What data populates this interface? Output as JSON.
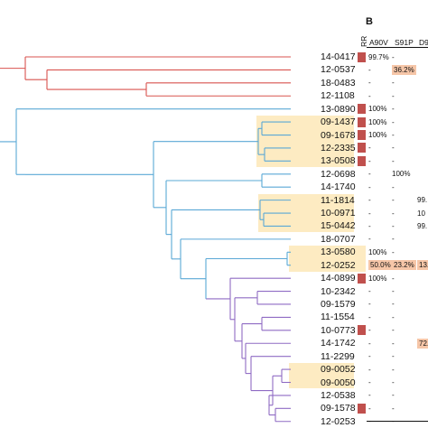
{
  "panel_label": "B",
  "header": {
    "rr": "RR",
    "columns": [
      "A90V",
      "S91P",
      "D9"
    ]
  },
  "colors": {
    "red_clade": "#d9534f",
    "blue_clade": "#5aa8d6",
    "purple_clade": "#8f6bc4",
    "highlight": "#fdebc2",
    "rr_marker": "#c0504d",
    "cell_highlight": "#f6c6a8"
  },
  "taxa": [
    {
      "id": "14-0417",
      "rr": true,
      "highlight": false,
      "cells": [
        "99.7%",
        "-",
        ""
      ]
    },
    {
      "id": "12-0537",
      "rr": false,
      "highlight": false,
      "cells": [
        "-",
        "36.2%",
        ""
      ]
    },
    {
      "id": "18-0483",
      "rr": false,
      "highlight": false,
      "cells": [
        "-",
        "-",
        ""
      ]
    },
    {
      "id": "12-1108",
      "rr": false,
      "highlight": false,
      "cells": [
        "-",
        "-",
        ""
      ]
    },
    {
      "id": "13-0890",
      "rr": true,
      "highlight": false,
      "cells": [
        "100%",
        "-",
        ""
      ]
    },
    {
      "id": "09-1437",
      "rr": true,
      "highlight": true,
      "cells": [
        "100%",
        "-",
        ""
      ]
    },
    {
      "id": "09-1678",
      "rr": true,
      "highlight": true,
      "cells": [
        "100%",
        "-",
        ""
      ]
    },
    {
      "id": "12-2335",
      "rr": true,
      "highlight": true,
      "cells": [
        "-",
        "-",
        ""
      ]
    },
    {
      "id": "13-0508",
      "rr": true,
      "highlight": true,
      "cells": [
        "-",
        "-",
        ""
      ]
    },
    {
      "id": "12-0698",
      "rr": false,
      "highlight": false,
      "cells": [
        "-",
        "100%",
        ""
      ]
    },
    {
      "id": "14-1740",
      "rr": false,
      "highlight": false,
      "cells": [
        "-",
        "-",
        ""
      ]
    },
    {
      "id": "11-1814",
      "rr": false,
      "highlight": true,
      "cells": [
        "-",
        "-",
        "99."
      ]
    },
    {
      "id": "10-0971",
      "rr": false,
      "highlight": true,
      "cells": [
        "-",
        "-",
        "10"
      ]
    },
    {
      "id": "15-0442",
      "rr": false,
      "highlight": true,
      "cells": [
        "-",
        "-",
        "99."
      ]
    },
    {
      "id": "18-0707",
      "rr": false,
      "highlight": false,
      "cells": [
        "-",
        "-",
        ""
      ]
    },
    {
      "id": "13-0580",
      "rr": false,
      "highlight": true,
      "cells": [
        "100%",
        "-",
        ""
      ]
    },
    {
      "id": "12-0252",
      "rr": false,
      "highlight": true,
      "cells": [
        "50.0%",
        "23.2%",
        "13."
      ]
    },
    {
      "id": "14-0899",
      "rr": true,
      "highlight": false,
      "cells": [
        "100%",
        "-",
        ""
      ]
    },
    {
      "id": "10-2342",
      "rr": false,
      "highlight": false,
      "cells": [
        "-",
        "-",
        ""
      ]
    },
    {
      "id": "09-1579",
      "rr": false,
      "highlight": false,
      "cells": [
        "-",
        "-",
        ""
      ]
    },
    {
      "id": "11-1554",
      "rr": false,
      "highlight": false,
      "cells": [
        "-",
        "-",
        ""
      ]
    },
    {
      "id": "10-0773",
      "rr": true,
      "highlight": false,
      "cells": [
        "-",
        "-",
        ""
      ]
    },
    {
      "id": "14-1742",
      "rr": false,
      "highlight": false,
      "cells": [
        "-",
        "-",
        "72."
      ]
    },
    {
      "id": "11-2299",
      "rr": false,
      "highlight": false,
      "cells": [
        "-",
        "-",
        ""
      ]
    },
    {
      "id": "09-0052",
      "rr": false,
      "highlight": true,
      "cells": [
        "-",
        "-",
        ""
      ]
    },
    {
      "id": "09-0050",
      "rr": false,
      "highlight": true,
      "cells": [
        "-",
        "-",
        ""
      ]
    },
    {
      "id": "12-0538",
      "rr": false,
      "highlight": false,
      "cells": [
        "-",
        "-",
        ""
      ]
    },
    {
      "id": "09-1578",
      "rr": true,
      "highlight": false,
      "cells": [
        "-",
        "-",
        ""
      ]
    },
    {
      "id": "12-0253",
      "rr": false,
      "highlight": false,
      "cells": [
        "-",
        "-",
        ""
      ]
    }
  ],
  "highlighted_cells": [
    "12-0537:1",
    "12-0252:0",
    "12-0252:1",
    "12-0252:2",
    "14-1742:2"
  ]
}
